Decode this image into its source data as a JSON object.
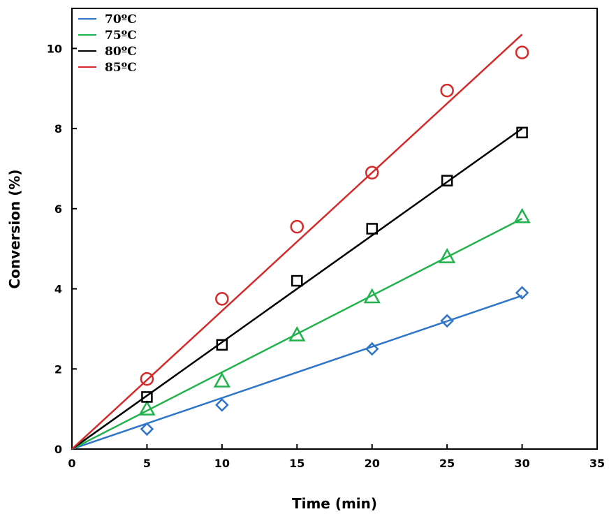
{
  "chart_data": {
    "type": "scatter",
    "xlabel": "Time (min)",
    "ylabel": "Conversion (%)",
    "xlim": [
      0,
      35
    ],
    "ylim": [
      0,
      11
    ],
    "xticks": [
      0,
      5,
      10,
      15,
      20,
      25,
      30,
      35
    ],
    "yticks": [
      0,
      2,
      4,
      6,
      8,
      10
    ],
    "grid": false,
    "legend_position": "top-left",
    "series": [
      {
        "name": "70ºC",
        "color": "#2e75c8",
        "marker": "diamond",
        "x": [
          5,
          10,
          20,
          25,
          30
        ],
        "y": [
          0.5,
          1.1,
          2.5,
          3.2,
          3.9
        ],
        "fit_line": {
          "x": [
            0,
            30
          ],
          "y": [
            0,
            3.83
          ]
        }
      },
      {
        "name": "75ºC",
        "color": "#22b24c",
        "marker": "triangle",
        "x": [
          5,
          10,
          15,
          20,
          25,
          30
        ],
        "y": [
          1.0,
          1.7,
          2.85,
          3.8,
          4.8,
          5.8
        ],
        "fit_line": {
          "x": [
            0,
            30
          ],
          "y": [
            0,
            5.75
          ]
        }
      },
      {
        "name": "80ºC",
        "color": "#000000",
        "marker": "square",
        "x": [
          5,
          10,
          15,
          20,
          25,
          30
        ],
        "y": [
          1.3,
          2.6,
          4.2,
          5.5,
          6.7,
          7.9
        ],
        "fit_line": {
          "x": [
            0,
            30
          ],
          "y": [
            0,
            8.0
          ]
        }
      },
      {
        "name": "85ºC",
        "color": "#d42a2a",
        "marker": "circle",
        "x": [
          5,
          10,
          15,
          20,
          25,
          30
        ],
        "y": [
          1.75,
          3.75,
          5.55,
          6.9,
          8.95,
          9.9
        ],
        "fit_line": {
          "x": [
            0,
            30
          ],
          "y": [
            0,
            10.35
          ]
        }
      }
    ]
  }
}
